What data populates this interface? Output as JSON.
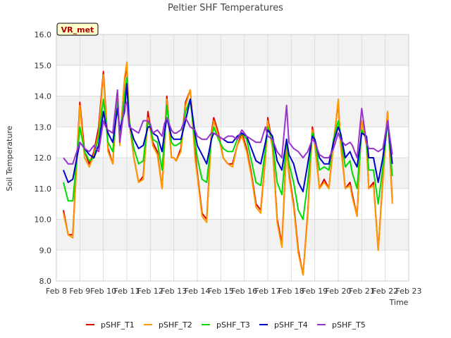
{
  "chart_data": {
    "type": "line",
    "title": "Peltier SHF Temperatures",
    "xlabel": "Time",
    "ylabel": "Soil Temperature",
    "badge": "VR_met",
    "x_ticks": [
      "Feb 8",
      "Feb 9",
      "Feb 10",
      "Feb 11",
      "Feb 12",
      "Feb 13",
      "Feb 14",
      "Feb 15",
      "Feb 16",
      "Feb 17",
      "Feb 18",
      "Feb 19",
      "Feb 20",
      "Feb 21",
      "Feb 22",
      "Feb 23"
    ],
    "y_ticks": [
      "8.0",
      "9.0",
      "10.0",
      "11.0",
      "12.0",
      "13.0",
      "14.0",
      "15.0",
      "16.0"
    ],
    "xlim": [
      0,
      15
    ],
    "ylim": [
      8.0,
      16.0
    ],
    "grid": true,
    "legend": "bottom",
    "x_days_since": "Feb 8",
    "series": [
      {
        "name": "pSHF_T1",
        "color": "#dd0000",
        "x": [
          0.3,
          0.5,
          0.7,
          1.0,
          1.2,
          1.4,
          1.6,
          1.8,
          2.0,
          2.1,
          2.2,
          2.4,
          2.6,
          2.7,
          2.9,
          3.0,
          3.1,
          3.3,
          3.5,
          3.7,
          3.9,
          4.0,
          4.1,
          4.3,
          4.5,
          4.6,
          4.7,
          4.9,
          5.0,
          5.1,
          5.3,
          5.5,
          5.7,
          5.9,
          6.0,
          6.2,
          6.4,
          6.6,
          6.7,
          6.9,
          7.1,
          7.3,
          7.5,
          7.7,
          7.9,
          8.1,
          8.3,
          8.5,
          8.7,
          8.9,
          9.0,
          9.2,
          9.4,
          9.6,
          9.8,
          9.9,
          10.1,
          10.3,
          10.5,
          10.7,
          10.9,
          11.0,
          11.2,
          11.4,
          11.6,
          11.8,
          12.0,
          12.1,
          12.3,
          12.5,
          12.6,
          12.8,
          13.0,
          13.2,
          13.3,
          13.5,
          13.7,
          13.9,
          14.1,
          14.3
        ],
        "y": [
          10.3,
          9.5,
          9.5,
          13.8,
          12.2,
          11.8,
          12.2,
          13.0,
          14.8,
          13.6,
          12.3,
          11.8,
          14.1,
          12.5,
          14.5,
          15.0,
          13.2,
          12.0,
          11.2,
          11.4,
          13.5,
          13.0,
          12.5,
          12.2,
          11.0,
          12.4,
          14.0,
          12.0,
          12.0,
          11.9,
          12.3,
          13.8,
          14.2,
          12.2,
          11.5,
          10.2,
          10.0,
          12.8,
          13.3,
          12.8,
          12.0,
          11.8,
          11.8,
          12.4,
          12.8,
          12.3,
          11.5,
          10.5,
          10.3,
          12.0,
          13.3,
          12.4,
          10.0,
          9.2,
          12.4,
          11.5,
          10.5,
          9.0,
          8.2,
          10.2,
          13.0,
          12.5,
          11.0,
          11.3,
          11.0,
          12.5,
          13.8,
          12.5,
          11.0,
          11.2,
          10.8,
          10.1,
          13.2,
          12.5,
          11.0,
          11.2,
          9.0,
          11.3,
          13.5,
          10.6
        ]
      },
      {
        "name": "pSHF_T2",
        "color": "#ff9900",
        "x": [
          0.3,
          0.5,
          0.7,
          1.0,
          1.2,
          1.4,
          1.6,
          1.8,
          2.0,
          2.1,
          2.2,
          2.4,
          2.6,
          2.7,
          2.9,
          3.0,
          3.1,
          3.3,
          3.5,
          3.7,
          3.9,
          4.0,
          4.1,
          4.3,
          4.5,
          4.6,
          4.7,
          4.9,
          5.0,
          5.1,
          5.3,
          5.5,
          5.7,
          5.9,
          6.0,
          6.2,
          6.4,
          6.6,
          6.7,
          6.9,
          7.1,
          7.3,
          7.5,
          7.7,
          7.9,
          8.1,
          8.3,
          8.5,
          8.7,
          8.9,
          9.0,
          9.2,
          9.4,
          9.6,
          9.8,
          9.9,
          10.1,
          10.3,
          10.5,
          10.7,
          10.9,
          11.0,
          11.2,
          11.4,
          11.6,
          11.8,
          12.0,
          12.1,
          12.3,
          12.5,
          12.6,
          12.8,
          13.0,
          13.2,
          13.3,
          13.5,
          13.7,
          13.9,
          14.1,
          14.3
        ],
        "y": [
          10.2,
          9.5,
          9.4,
          13.7,
          12.0,
          11.7,
          12.1,
          12.8,
          14.7,
          13.5,
          12.2,
          11.8,
          14.0,
          12.4,
          14.6,
          15.1,
          13.3,
          12.0,
          11.2,
          11.3,
          13.3,
          12.9,
          12.4,
          12.1,
          11.0,
          12.3,
          13.9,
          12.0,
          12.0,
          11.9,
          12.2,
          13.7,
          14.2,
          12.0,
          11.4,
          10.1,
          9.9,
          12.7,
          13.2,
          12.7,
          12.0,
          11.8,
          11.7,
          12.4,
          12.7,
          12.2,
          11.4,
          10.4,
          10.2,
          12.0,
          13.2,
          12.3,
          9.9,
          9.1,
          12.4,
          11.4,
          10.4,
          8.9,
          8.2,
          10.1,
          12.9,
          12.4,
          11.0,
          11.2,
          11.0,
          12.4,
          13.9,
          12.4,
          11.0,
          11.1,
          10.7,
          10.1,
          13.2,
          12.4,
          11.0,
          11.1,
          9.0,
          11.2,
          13.5,
          10.5
        ]
      },
      {
        "name": "pSHF_T3",
        "color": "#00dd00",
        "x": [
          0.3,
          0.5,
          0.7,
          1.0,
          1.2,
          1.4,
          1.6,
          1.8,
          2.0,
          2.1,
          2.2,
          2.4,
          2.6,
          2.7,
          2.9,
          3.0,
          3.1,
          3.3,
          3.5,
          3.7,
          3.9,
          4.0,
          4.1,
          4.3,
          4.5,
          4.6,
          4.7,
          4.9,
          5.0,
          5.1,
          5.3,
          5.5,
          5.7,
          5.9,
          6.0,
          6.2,
          6.4,
          6.6,
          6.7,
          6.9,
          7.1,
          7.3,
          7.5,
          7.7,
          7.9,
          8.1,
          8.3,
          8.5,
          8.7,
          8.9,
          9.0,
          9.2,
          9.4,
          9.6,
          9.8,
          9.9,
          10.1,
          10.3,
          10.5,
          10.7,
          10.9,
          11.0,
          11.2,
          11.4,
          11.6,
          11.8,
          12.0,
          12.1,
          12.3,
          12.5,
          12.6,
          12.8,
          13.0,
          13.2,
          13.3,
          13.5,
          13.7,
          13.9,
          14.1,
          14.3
        ],
        "y": [
          11.2,
          10.6,
          10.6,
          13.0,
          12.2,
          11.9,
          12.0,
          12.7,
          13.9,
          13.2,
          12.5,
          12.2,
          13.8,
          12.6,
          14.0,
          14.6,
          13.2,
          12.3,
          11.8,
          11.9,
          13.2,
          13.0,
          12.6,
          12.5,
          11.6,
          12.6,
          13.7,
          12.5,
          12.4,
          12.4,
          12.5,
          13.5,
          13.9,
          12.5,
          12.0,
          11.3,
          11.2,
          12.6,
          13.0,
          12.6,
          12.3,
          12.2,
          12.2,
          12.6,
          12.8,
          12.6,
          11.9,
          11.2,
          11.1,
          12.3,
          13.0,
          12.5,
          11.2,
          10.8,
          12.6,
          11.8,
          11.2,
          10.3,
          10.0,
          11.2,
          12.8,
          12.6,
          11.6,
          11.7,
          11.6,
          12.6,
          13.2,
          12.7,
          11.7,
          11.9,
          11.5,
          11.0,
          12.9,
          12.6,
          11.6,
          11.6,
          10.5,
          11.7,
          13.2,
          11.4
        ]
      },
      {
        "name": "pSHF_T4",
        "color": "#0000cc",
        "x": [
          0.3,
          0.5,
          0.7,
          1.0,
          1.2,
          1.4,
          1.6,
          1.8,
          2.0,
          2.1,
          2.2,
          2.4,
          2.6,
          2.7,
          2.9,
          3.0,
          3.1,
          3.3,
          3.5,
          3.7,
          3.9,
          4.0,
          4.1,
          4.3,
          4.5,
          4.6,
          4.7,
          4.9,
          5.0,
          5.1,
          5.3,
          5.5,
          5.7,
          5.9,
          6.0,
          6.2,
          6.4,
          6.6,
          6.7,
          6.9,
          7.1,
          7.3,
          7.5,
          7.7,
          7.9,
          8.1,
          8.3,
          8.5,
          8.7,
          8.9,
          9.0,
          9.2,
          9.4,
          9.6,
          9.8,
          9.9,
          10.1,
          10.3,
          10.5,
          10.7,
          10.9,
          11.0,
          11.2,
          11.4,
          11.6,
          11.8,
          12.0,
          12.1,
          12.3,
          12.5,
          12.6,
          12.8,
          13.0,
          13.2,
          13.3,
          13.5,
          13.7,
          13.9,
          14.1,
          14.3
        ],
        "y": [
          11.6,
          11.2,
          11.3,
          12.5,
          12.3,
          12.1,
          12.0,
          12.4,
          13.5,
          13.1,
          12.8,
          12.5,
          13.6,
          12.9,
          13.5,
          14.4,
          13.1,
          12.6,
          12.3,
          12.4,
          13.0,
          13.0,
          12.8,
          12.7,
          12.2,
          12.8,
          13.3,
          12.7,
          12.6,
          12.6,
          12.6,
          13.2,
          13.9,
          12.8,
          12.4,
          12.1,
          11.8,
          12.6,
          12.8,
          12.7,
          12.6,
          12.5,
          12.5,
          12.7,
          12.8,
          12.7,
          12.3,
          11.9,
          11.8,
          12.5,
          12.9,
          12.7,
          11.9,
          11.6,
          12.6,
          12.1,
          11.8,
          11.2,
          10.9,
          11.8,
          12.7,
          12.6,
          12.0,
          11.8,
          11.8,
          12.5,
          13.0,
          12.8,
          12.0,
          12.2,
          12.0,
          11.7,
          12.8,
          12.7,
          12.0,
          12.0,
          11.2,
          12.0,
          13.2,
          11.8
        ]
      },
      {
        "name": "pSHF_T5",
        "color": "#9933cc",
        "x": [
          0.3,
          0.5,
          0.7,
          1.0,
          1.2,
          1.4,
          1.6,
          1.8,
          2.0,
          2.1,
          2.2,
          2.4,
          2.6,
          2.7,
          2.9,
          3.0,
          3.1,
          3.3,
          3.5,
          3.7,
          3.9,
          4.0,
          4.1,
          4.3,
          4.5,
          4.6,
          4.7,
          4.9,
          5.0,
          5.1,
          5.3,
          5.5,
          5.7,
          5.9,
          6.0,
          6.2,
          6.4,
          6.6,
          6.7,
          6.9,
          7.1,
          7.3,
          7.5,
          7.7,
          7.9,
          8.1,
          8.3,
          8.5,
          8.7,
          8.9,
          9.0,
          9.2,
          9.4,
          9.6,
          9.8,
          9.9,
          10.1,
          10.3,
          10.5,
          10.7,
          10.9,
          11.0,
          11.2,
          11.4,
          11.6,
          11.8,
          12.0,
          12.1,
          12.3,
          12.5,
          12.6,
          12.8,
          13.0,
          13.2,
          13.3,
          13.5,
          13.7,
          13.9,
          14.1,
          14.3
        ],
        "y": [
          12.0,
          11.8,
          11.8,
          12.5,
          12.3,
          12.2,
          12.4,
          12.2,
          13.2,
          13.0,
          12.9,
          12.8,
          14.2,
          12.5,
          13.7,
          13.8,
          13.0,
          12.9,
          12.8,
          13.2,
          13.2,
          13.1,
          12.8,
          12.9,
          12.7,
          13.1,
          13.3,
          12.9,
          12.8,
          12.8,
          12.9,
          13.3,
          13.0,
          12.9,
          12.7,
          12.6,
          12.6,
          12.8,
          12.8,
          12.7,
          12.6,
          12.7,
          12.7,
          12.6,
          12.9,
          12.7,
          12.6,
          12.5,
          12.5,
          13.0,
          12.7,
          12.6,
          12.2,
          12.0,
          13.7,
          12.5,
          12.3,
          12.2,
          12.0,
          12.2,
          12.6,
          12.5,
          12.1,
          12.0,
          12.0,
          12.3,
          12.8,
          12.6,
          12.4,
          12.5,
          12.4,
          12.0,
          13.6,
          12.5,
          12.3,
          12.3,
          12.2,
          12.3,
          13.2,
          12.1
        ]
      }
    ]
  }
}
